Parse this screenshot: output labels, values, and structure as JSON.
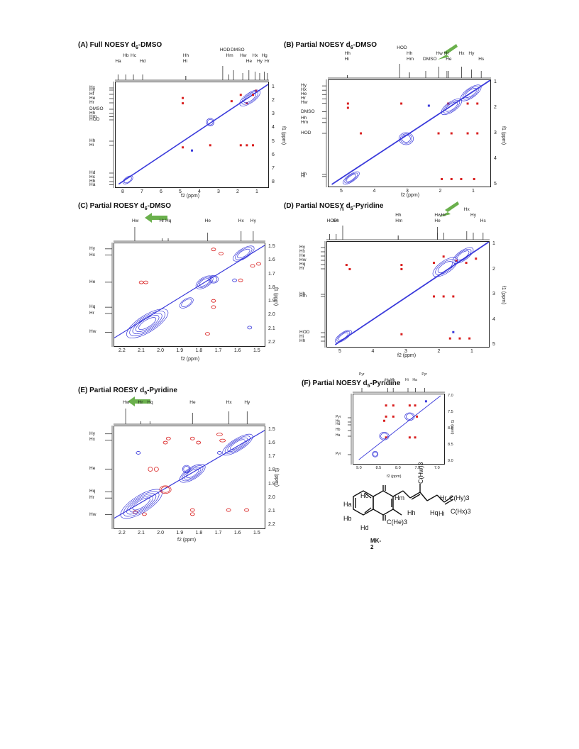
{
  "panels": {
    "A": {
      "title": "(A) Full NOESY d",
      "title_sub": "6",
      "title_rest": "-DMSO",
      "x_ticks": [
        "8",
        "7",
        "6",
        "5",
        "4",
        "3",
        "2",
        "1"
      ],
      "y_ticks": [
        "1",
        "2",
        "3",
        "4",
        "5",
        "6",
        "7",
        "8"
      ],
      "x_label": "f2 (ppm)",
      "y_label": "f1 (ppm)",
      "top_labels": [
        "Hb",
        "Hc",
        "Ha",
        "Hd",
        "Hh",
        "Hi",
        "HOD",
        "Hm",
        "DMSO",
        "Hw",
        "He",
        "Hx",
        "Hy",
        "Hg",
        "Hr"
      ],
      "left_labels": [
        "Hx",
        "Hy",
        "Hf",
        "He",
        "Hr",
        "DMSO",
        "Hh",
        "Hm",
        "HOD",
        "Hh",
        "Hi",
        "Hd",
        "Hc",
        "Hb",
        "Ha"
      ]
    },
    "B": {
      "title": "(B) Partial NOESY d",
      "title_sub": "6",
      "title_rest": "-DMSO",
      "x_ticks": [
        "5",
        "4",
        "3",
        "2",
        "1"
      ],
      "y_ticks": [
        "1",
        "2",
        "3",
        "4",
        "5"
      ],
      "x_label": "f2 (ppm)",
      "y_label": "f1 (ppm)",
      "top_labels": [
        "HOD",
        "Hh",
        "Hi",
        "Hh",
        "Hm",
        "DMSO",
        "Hw",
        "Hr",
        "He",
        "Hx",
        "Hy",
        "Hs"
      ],
      "left_labels": [
        "Hy",
        "Hx",
        "He",
        "Hr",
        "Hw",
        "DMSO",
        "Hh",
        "Hm",
        "HOD",
        "Hh",
        "Hi"
      ]
    },
    "C": {
      "title": "(C) Partial ROESY d",
      "title_sub": "6",
      "title_rest": "-DMSO",
      "x_ticks": [
        "2.2",
        "2.1",
        "2.0",
        "1.9",
        "1.8",
        "1.7",
        "1.6",
        "1.5"
      ],
      "y_ticks": [
        "1.5",
        "1.6",
        "1.7",
        "1.8",
        "1.9",
        "2.0",
        "2.1",
        "2.2"
      ],
      "x_label": "f2 (ppm)",
      "y_label": "f1 (ppm)",
      "top_labels": [
        "Hw",
        "Hr",
        "Hq",
        "He",
        "Hx",
        "Hy"
      ],
      "left_labels": [
        "Hy",
        "Hx",
        "He",
        "Hq",
        "Hr",
        "Hw"
      ]
    },
    "D": {
      "title": "(D) Partial NOESY d",
      "title_sub": "5",
      "title_rest": "-Pyridine",
      "x_ticks": [
        "5",
        "4",
        "3",
        "2",
        "1"
      ],
      "y_ticks": [
        "1",
        "2",
        "3",
        "4",
        "5"
      ],
      "x_label": "f2 (ppm)",
      "y_label": "f1 (ppm)",
      "top_labels": [
        "HOD",
        "Hh",
        "Hi",
        "Hh",
        "Hm",
        "Hw",
        "He",
        "Hr",
        "Hx",
        "Hy",
        "Hs"
      ],
      "left_labels": [
        "Hy",
        "Hx",
        "He",
        "Hw",
        "Hq",
        "Hr",
        "Hh",
        "Hm",
        "HOD",
        "Hi",
        "Hh"
      ]
    },
    "E": {
      "title": "(E) Partial ROESY d",
      "title_sub": "5",
      "title_rest": "-Pyridine",
      "x_ticks": [
        "2.2",
        "2.1",
        "2.0",
        "1.9",
        "1.8",
        "1.7",
        "1.6",
        "1.5"
      ],
      "y_ticks": [
        "1.5",
        "1.6",
        "1.7",
        "1.8",
        "1.9",
        "2.0",
        "2.1",
        "2.2"
      ],
      "x_label": "f2 (ppm)",
      "y_label": "f1 (ppm)",
      "top_labels": [
        "Hw",
        "Hr",
        "Hq",
        "He",
        "Hx",
        "Hy"
      ],
      "left_labels": [
        "Hy",
        "Hx",
        "He",
        "Hq",
        "Hr",
        "Hw"
      ]
    },
    "F": {
      "title": "(F) Partial NOESY d",
      "title_sub": "5",
      "title_rest": "-Pyridine",
      "x_ticks": [
        "9.0",
        "8.5",
        "8.0",
        "7.5",
        "7.0"
      ],
      "y_ticks": [
        "7.0",
        "7.5",
        "8.0",
        "8.5",
        "9.0"
      ],
      "x_label": "f2 (ppm)",
      "y_label": "f1 (ppm)",
      "top_labels": [
        "Pyr",
        "Hc",
        "Hb",
        "Hi",
        "Ha",
        "Pyr"
      ],
      "left_labels": [
        "Pyr",
        "Hc",
        "Hd",
        "Hb",
        "Ha",
        "Pyr"
      ]
    }
  },
  "molecule": {
    "name": "MK-2",
    "labels": [
      "Ha",
      "Hb",
      "Hc",
      "Hd",
      "Hm",
      "Hh",
      "Hi",
      "Hr",
      "Hq",
      "C(Hy)3",
      "C(Hx)3",
      "C(Hw)3",
      "C(He)3"
    ]
  },
  "colors": {
    "positive": "#3a3adb",
    "negative": "#d92020",
    "arrow": "#6ab04c"
  }
}
